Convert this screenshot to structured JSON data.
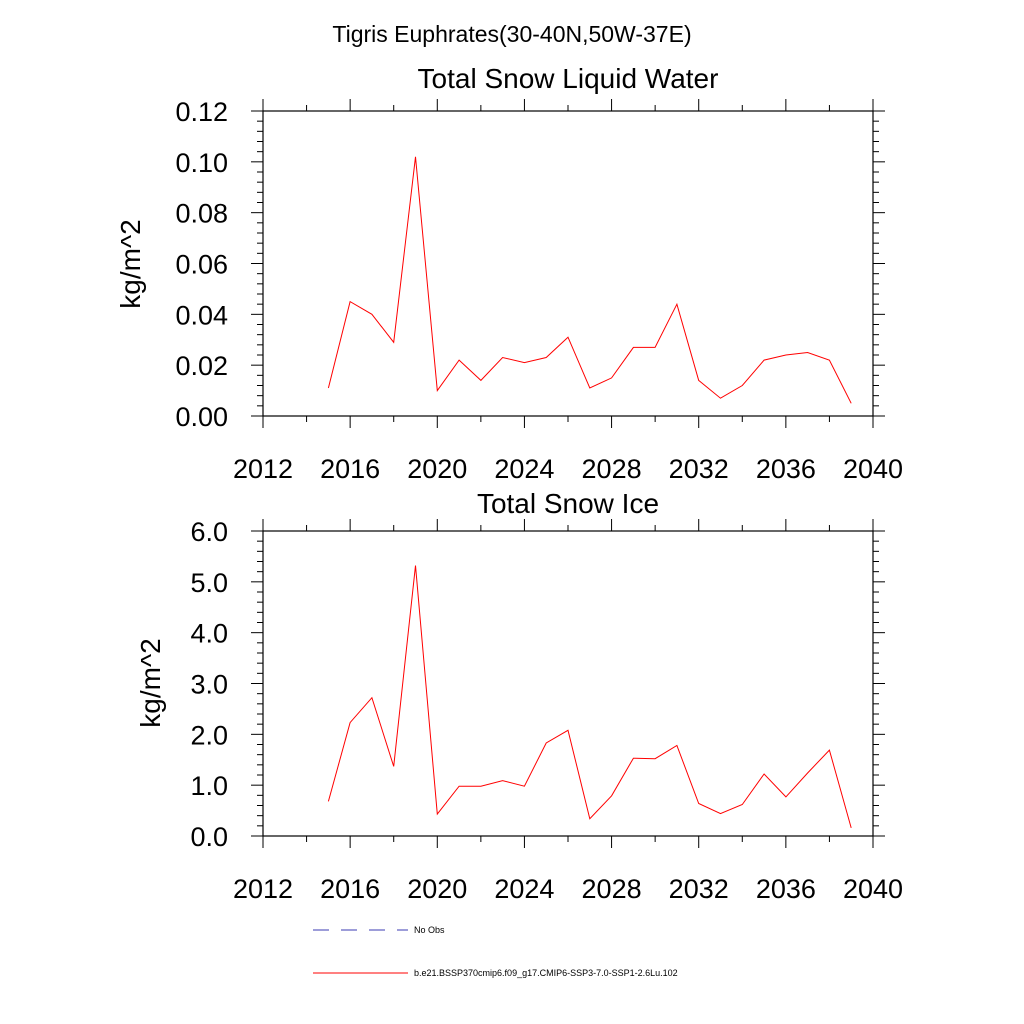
{
  "suptitle": "Tigris Euphrates(30-40N,50W-37E)",
  "legend": [
    {
      "label": "No Obs",
      "color": "#3b3bb3",
      "dash": "dashed"
    },
    {
      "label": "b.e21.BSSP370cmip6.f09_g17.CMIP6-SSP3-7.0-SSP1-2.6Lu.102",
      "color": "#ff0000",
      "dash": "solid"
    }
  ],
  "chart_data": [
    {
      "type": "line",
      "title": "Total Snow Liquid Water",
      "ylabel": "kg/m^2",
      "xlim": [
        2012,
        2040
      ],
      "ylim": [
        0,
        0.12
      ],
      "xticks": [
        2012,
        2016,
        2020,
        2024,
        2028,
        2032,
        2036,
        2040
      ],
      "yticks": [
        0,
        0.02,
        0.04,
        0.06,
        0.08,
        0.1,
        0.12
      ],
      "ytick_labels": [
        "0.00",
        "0.02",
        "0.04",
        "0.06",
        "0.08",
        "0.10",
        "0.12"
      ],
      "x": [
        2015,
        2016,
        2017,
        2018,
        2019,
        2020,
        2021,
        2022,
        2023,
        2024,
        2025,
        2026,
        2027,
        2028,
        2029,
        2030,
        2031,
        2032,
        2033,
        2034,
        2035,
        2036,
        2037,
        2038,
        2039
      ],
      "series": [
        {
          "color": "#ff0000",
          "values": [
            0.011,
            0.045,
            0.04,
            0.029,
            0.102,
            0.01,
            0.022,
            0.014,
            0.023,
            0.021,
            0.023,
            0.031,
            0.011,
            0.015,
            0.027,
            0.027,
            0.044,
            0.014,
            0.007,
            0.012,
            0.022,
            0.024,
            0.025,
            0.022,
            0.005
          ]
        }
      ],
      "grid": false
    },
    {
      "type": "line",
      "title": "Total Snow Ice",
      "ylabel": "kg/m^2",
      "xlim": [
        2012,
        2040
      ],
      "ylim": [
        0,
        6.0
      ],
      "xticks": [
        2012,
        2016,
        2020,
        2024,
        2028,
        2032,
        2036,
        2040
      ],
      "yticks": [
        0,
        1,
        2,
        3,
        4,
        5,
        6
      ],
      "ytick_labels": [
        "0.0",
        "1.0",
        "2.0",
        "3.0",
        "4.0",
        "5.0",
        "6.0"
      ],
      "x": [
        2015,
        2016,
        2017,
        2018,
        2019,
        2020,
        2021,
        2022,
        2023,
        2024,
        2025,
        2026,
        2027,
        2028,
        2029,
        2030,
        2031,
        2032,
        2033,
        2034,
        2035,
        2036,
        2037,
        2038,
        2039
      ],
      "series": [
        {
          "color": "#ff0000",
          "values": [
            0.68,
            2.23,
            2.72,
            1.37,
            5.32,
            0.43,
            0.98,
            0.98,
            1.09,
            0.98,
            1.83,
            2.08,
            0.34,
            0.79,
            1.53,
            1.52,
            1.78,
            0.64,
            0.44,
            0.62,
            1.22,
            0.77,
            1.24,
            1.69,
            0.16
          ]
        }
      ],
      "grid": false
    }
  ]
}
